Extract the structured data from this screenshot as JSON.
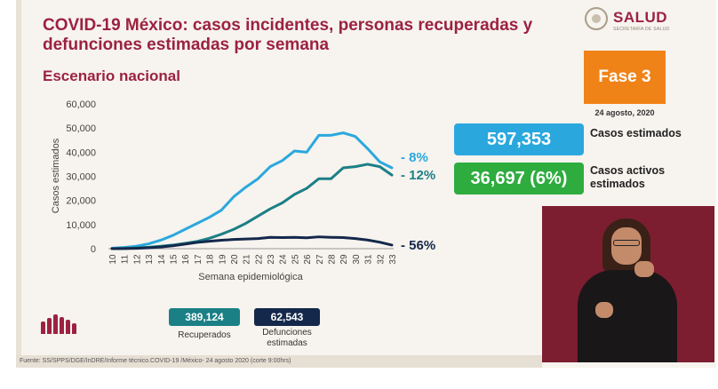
{
  "title": "COVID-19 México: casos incidentes, personas recuperadas y defunciones estimadas por semana",
  "subtitle": "Escenario nacional",
  "logo": {
    "name": "SALUD",
    "subtext": "SECRETARÍA DE SALUD"
  },
  "phase": {
    "label": "Fase 3",
    "date": "24 agosto, 2020"
  },
  "kpis": [
    {
      "value": "597,353",
      "label": "Casos estimados",
      "color": "#2aa8de"
    },
    {
      "value": "36,697 (6%)",
      "label": "Casos activos estimados",
      "color": "#2eac3e"
    }
  ],
  "badges": [
    {
      "value": "389,124",
      "label": "Recuperados",
      "color": "#1b7f86"
    },
    {
      "value": "62,543",
      "label": "Defunciones estimadas",
      "color": "#14284b"
    }
  ],
  "footer": "Fuente: SS/SPPS/DGE/InDRE/Informe técnico.COVID-19 /México- 24 agosto 2020 (corte 9:00hrs)",
  "chart_data": {
    "type": "line",
    "xlabel": "Semana epidemiológica",
    "ylabel": "Casos estimados",
    "ylim": [
      0,
      60000
    ],
    "yticks": [
      0,
      10000,
      20000,
      30000,
      40000,
      50000,
      60000
    ],
    "ytick_labels": [
      "0",
      "10,000",
      "20,000",
      "30,000",
      "40,000",
      "50,000",
      "60,000"
    ],
    "x": [
      10,
      11,
      12,
      13,
      14,
      15,
      16,
      17,
      18,
      19,
      20,
      21,
      22,
      23,
      24,
      25,
      26,
      27,
      28,
      29,
      30,
      31,
      32,
      33
    ],
    "grid": false,
    "series": [
      {
        "color": "#2aa8de",
        "end_label": "- 8%",
        "values": [
          200,
          500,
          1000,
          2000,
          3500,
          5500,
          8000,
          10500,
          13000,
          16000,
          21500,
          25500,
          29000,
          34000,
          36500,
          40500,
          40000,
          47000,
          47000,
          48000,
          46500,
          41500,
          36000,
          33500
        ]
      },
      {
        "color": "#1b7f86",
        "end_label": "- 12%",
        "values": [
          0,
          100,
          300,
          600,
          1000,
          1500,
          2200,
          3000,
          4300,
          6000,
          8000,
          10500,
          13500,
          16500,
          19000,
          22500,
          25000,
          29000,
          29000,
          33500,
          34000,
          35000,
          34000,
          30500
        ]
      },
      {
        "color": "#14284b",
        "end_label": "- 56%",
        "values": [
          0,
          50,
          150,
          350,
          700,
          1200,
          1900,
          2600,
          3100,
          3500,
          3800,
          4000,
          4200,
          4700,
          4600,
          4700,
          4500,
          4900,
          4700,
          4600,
          4200,
          3600,
          2700,
          1500
        ]
      }
    ]
  }
}
